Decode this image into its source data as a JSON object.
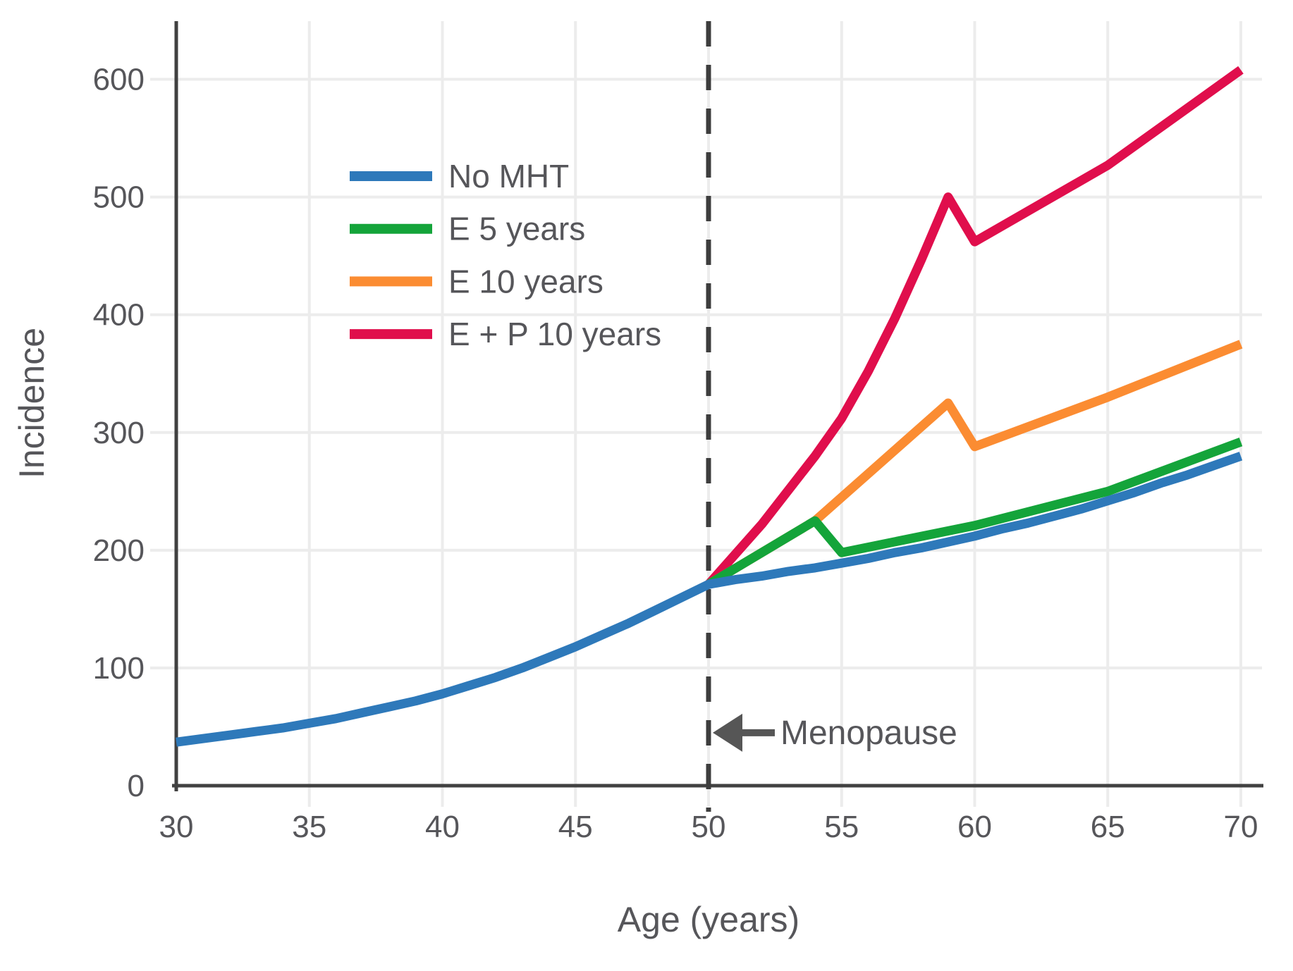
{
  "chart_data": {
    "type": "line",
    "title": "",
    "xlabel": "Age (years)",
    "ylabel": "Incidence",
    "xlim": [
      30,
      70
    ],
    "ylim": [
      0,
      650
    ],
    "xticks": [
      30,
      35,
      40,
      45,
      50,
      55,
      60,
      65,
      70
    ],
    "yticks": [
      0,
      100,
      200,
      300,
      400,
      500,
      600
    ],
    "grid": true,
    "legend_position": "upper-left-inside",
    "colors": {
      "axis": "#414141",
      "grid": "#ececec",
      "text": "#56565a",
      "dashed_line": "#3d3d3d",
      "annotation": "#565656"
    },
    "annotation": {
      "label": "Menopause",
      "points_to_x": 50,
      "at_value": 45,
      "arrow_direction": "left"
    },
    "reference_line": {
      "x": 50,
      "style": "dashed",
      "meaning": "Menopause"
    },
    "series": [
      {
        "name": "No MHT",
        "color": "#2e79ba",
        "points": [
          [
            30,
            37
          ],
          [
            31,
            40
          ],
          [
            32,
            43
          ],
          [
            33,
            46
          ],
          [
            34,
            49
          ],
          [
            35,
            53
          ],
          [
            36,
            57
          ],
          [
            37,
            62
          ],
          [
            38,
            67
          ],
          [
            39,
            72
          ],
          [
            40,
            78
          ],
          [
            41,
            85
          ],
          [
            42,
            92
          ],
          [
            43,
            100
          ],
          [
            44,
            109
          ],
          [
            45,
            118
          ],
          [
            46,
            128
          ],
          [
            47,
            138
          ],
          [
            48,
            149
          ],
          [
            49,
            160
          ],
          [
            50,
            171
          ],
          [
            51,
            175
          ],
          [
            52,
            178
          ],
          [
            53,
            182
          ],
          [
            54,
            185
          ],
          [
            55,
            189
          ],
          [
            56,
            193
          ],
          [
            57,
            198
          ],
          [
            58,
            202
          ],
          [
            59,
            207
          ],
          [
            60,
            212
          ],
          [
            61,
            218
          ],
          [
            62,
            223
          ],
          [
            63,
            229
          ],
          [
            64,
            235
          ],
          [
            65,
            242
          ],
          [
            66,
            249
          ],
          [
            67,
            257
          ],
          [
            68,
            264
          ],
          [
            69,
            272
          ],
          [
            70,
            280
          ]
        ]
      },
      {
        "name": "E 5 years",
        "color": "#14a43a",
        "points": [
          [
            50,
            171
          ],
          [
            54,
            225
          ],
          [
            55,
            198
          ],
          [
            60,
            221
          ],
          [
            65,
            250
          ],
          [
            70,
            292
          ]
        ]
      },
      {
        "name": "E 10 years",
        "color": "#fb8c32",
        "points": [
          [
            50,
            171
          ],
          [
            54,
            225
          ],
          [
            59,
            325
          ],
          [
            60,
            288
          ],
          [
            65,
            330
          ],
          [
            70,
            375
          ]
        ]
      },
      {
        "name": "E + P 10 years",
        "color": "#e00e4c",
        "points": [
          [
            50,
            171
          ],
          [
            52,
            222
          ],
          [
            54,
            280
          ],
          [
            55,
            312
          ],
          [
            56,
            352
          ],
          [
            57,
            397
          ],
          [
            58,
            447
          ],
          [
            59,
            500
          ],
          [
            60,
            462
          ],
          [
            65,
            527
          ],
          [
            70,
            608
          ]
        ]
      }
    ]
  }
}
